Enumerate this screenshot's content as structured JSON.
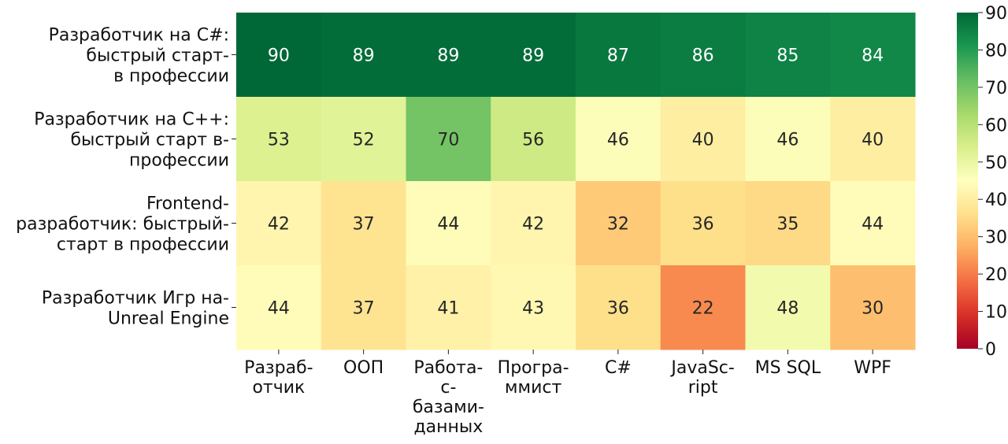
{
  "chart_data": {
    "type": "heatmap",
    "title": "",
    "xlabel": "",
    "ylabel": "",
    "x_categories": [
      [
        "Разраб-",
        "отчик"
      ],
      [
        "ООП"
      ],
      [
        "Работа-",
        "с-",
        "базами-",
        "данных"
      ],
      [
        "Програ-",
        "ммист"
      ],
      [
        "C#"
      ],
      [
        "JavaSc-",
        "ript"
      ],
      [
        "MS SQL"
      ],
      [
        "WPF"
      ]
    ],
    "y_categories": [
      [
        "Разработчик на C#:",
        "быстрый старт-",
        "в профессии"
      ],
      [
        "Разработчик на C++:",
        "быстрый старт в-",
        "профессии"
      ],
      [
        "Frontend-",
        "разработчик: быстрый-",
        "старт в профессии"
      ],
      [
        "Разработчик Игр на-",
        "Unreal Engine"
      ]
    ],
    "values": [
      [
        90,
        89,
        89,
        89,
        87,
        86,
        85,
        84
      ],
      [
        53,
        52,
        70,
        56,
        46,
        40,
        46,
        40
      ],
      [
        42,
        37,
        44,
        42,
        32,
        36,
        35,
        44
      ],
      [
        44,
        37,
        41,
        43,
        36,
        22,
        48,
        30
      ]
    ],
    "colorscale": "RdYlGn",
    "colorbar": {
      "vmin": 0,
      "vmax": 90,
      "ticks": [
        0,
        10,
        20,
        30,
        40,
        50,
        60,
        70,
        80,
        90
      ]
    },
    "annotations": true,
    "grid": false
  }
}
